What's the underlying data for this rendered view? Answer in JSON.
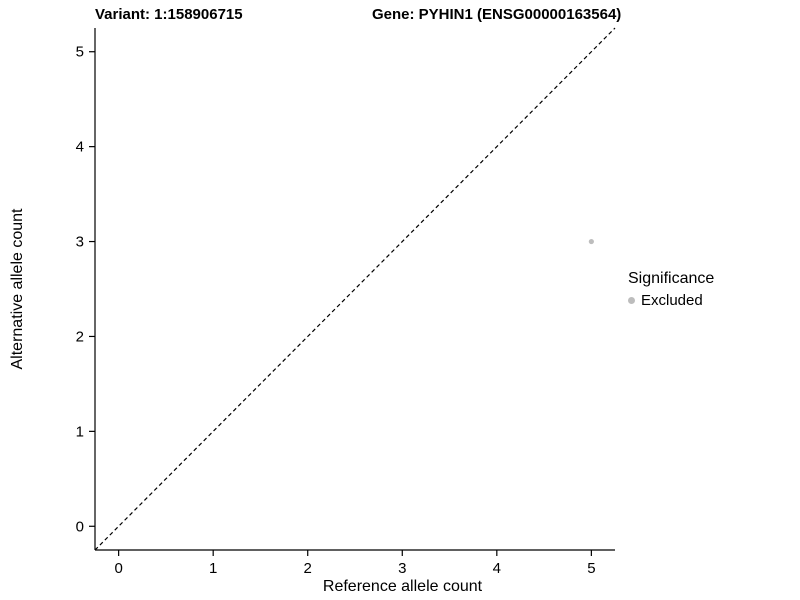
{
  "titles": {
    "left": "Variant: 1:158906715",
    "right": "Gene: PYHIN1 (ENSG00000163564)"
  },
  "chart_data": {
    "type": "scatter",
    "title_left": "Variant: 1:158906715",
    "title_right": "Gene: PYHIN1 (ENSG00000163564)",
    "xlabel": "Reference allele count",
    "ylabel": "Alternative allele count",
    "xlim": [
      -0.25,
      5.25
    ],
    "ylim": [
      -0.25,
      5.25
    ],
    "xticks": [
      0,
      1,
      2,
      3,
      4,
      5
    ],
    "yticks": [
      0,
      1,
      2,
      3,
      4,
      5
    ],
    "grid": false,
    "identity_line": {
      "show": true,
      "style": "dashed",
      "color": "#000000",
      "from": [
        -0.25,
        -0.25
      ],
      "to": [
        5.25,
        5.25
      ]
    },
    "series": [
      {
        "name": "Excluded",
        "color": "#bdbdbd",
        "points": [
          {
            "x": 5,
            "y": 3
          }
        ]
      }
    ],
    "legend": {
      "title": "Significance",
      "position": "right",
      "entries": [
        {
          "label": "Excluded",
          "color": "#bdbdbd"
        }
      ]
    },
    "colors": {
      "axis": "#000000",
      "tick_text": "#000000",
      "background": "#ffffff"
    }
  }
}
